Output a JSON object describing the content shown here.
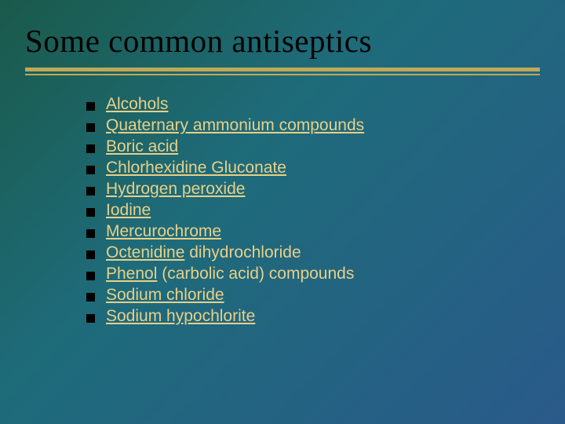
{
  "slide": {
    "title": "Some common antiseptics",
    "title_fontsize": 41,
    "title_color": "#000000",
    "rule_color": "#c0a858",
    "background_gradient": [
      "#1a5a4a",
      "#1e6b7a",
      "#2a5a8a"
    ],
    "bullet_color": "#000000",
    "bullet_size": 11,
    "item_color": "#e8d088",
    "item_fontsize": 21,
    "item_gap": 27,
    "items": [
      {
        "underlined": "Alcohols",
        "plain": ""
      },
      {
        "underlined": "Quaternary ammonium compounds",
        "plain": ""
      },
      {
        "underlined": "Boric acid",
        "plain": ""
      },
      {
        "underlined": "Chlorhexidine Gluconate",
        "plain": ""
      },
      {
        "underlined": "Hydrogen peroxide",
        "plain": ""
      },
      {
        "underlined": "Iodine",
        "plain": ""
      },
      {
        "underlined": "Mercurochrome",
        "plain": ""
      },
      {
        "underlined": "Octenidine",
        "plain": " dihydrochloride"
      },
      {
        "underlined": "Phenol",
        "plain": " (carbolic acid) compounds"
      },
      {
        "underlined": "Sodium chloride",
        "plain": ""
      },
      {
        "underlined": "Sodium hypochlorite",
        "plain": ""
      }
    ]
  }
}
